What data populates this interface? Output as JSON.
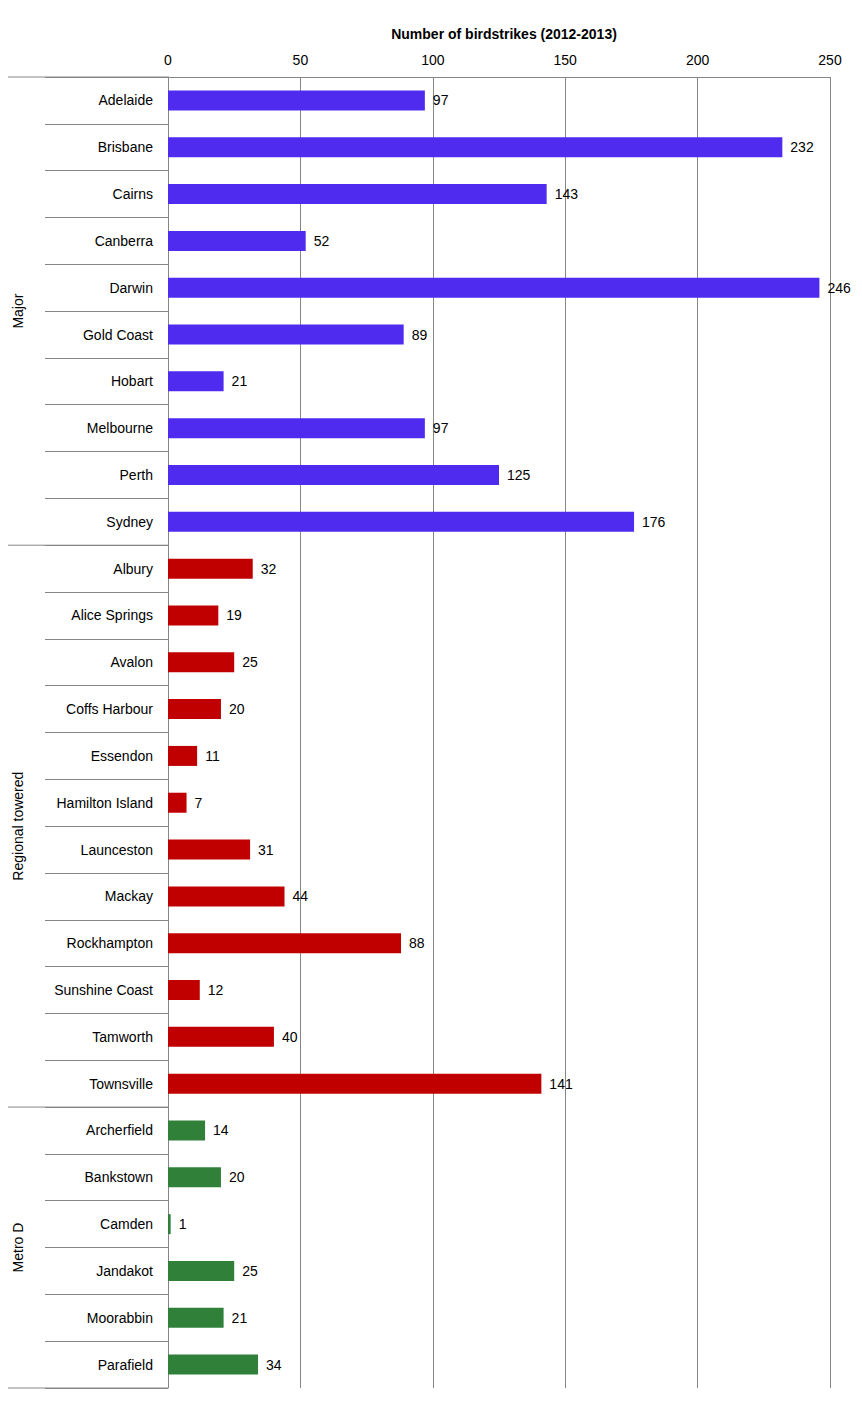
{
  "chart_data": {
    "type": "bar",
    "orientation": "horizontal",
    "title": "Number of birdstrikes (2012-2013)",
    "categories": [
      "Adelaide",
      "Brisbane",
      "Cairns",
      "Canberra",
      "Darwin",
      "Gold Coast",
      "Hobart",
      "Melbourne",
      "Perth",
      "Sydney",
      "Albury",
      "Alice Springs",
      "Avalon",
      "Coffs Harbour",
      "Essendon",
      "Hamilton Island",
      "Launceston",
      "Mackay",
      "Rockhampton",
      "Sunshine Coast",
      "Tamworth",
      "Townsville",
      "Archerfield",
      "Bankstown",
      "Camden",
      "Jandakot",
      "Moorabbin",
      "Parafield"
    ],
    "series": [
      {
        "name": "Major",
        "color": "#4f2bf0",
        "values": [
          97,
          232,
          143,
          52,
          246,
          89,
          21,
          97,
          125,
          176,
          null,
          null,
          null,
          null,
          null,
          null,
          null,
          null,
          null,
          null,
          null,
          null,
          null,
          null,
          null,
          null,
          null,
          null
        ]
      },
      {
        "name": "Regional towered",
        "color": "#c00000",
        "values": [
          null,
          null,
          null,
          null,
          null,
          null,
          null,
          null,
          null,
          null,
          32,
          19,
          25,
          20,
          11,
          7,
          31,
          44,
          88,
          12,
          40,
          141,
          null,
          null,
          null,
          null,
          null,
          null
        ]
      },
      {
        "name": "Metro D",
        "color": "#31803a",
        "values": [
          null,
          null,
          null,
          null,
          null,
          null,
          null,
          null,
          null,
          null,
          null,
          null,
          null,
          null,
          null,
          null,
          null,
          null,
          null,
          null,
          null,
          null,
          14,
          20,
          1,
          25,
          21,
          34
        ]
      }
    ],
    "xlim": [
      0,
      250
    ],
    "xticks": [
      0,
      50,
      100,
      150,
      200,
      250
    ],
    "grid": true,
    "data_labels": true
  }
}
